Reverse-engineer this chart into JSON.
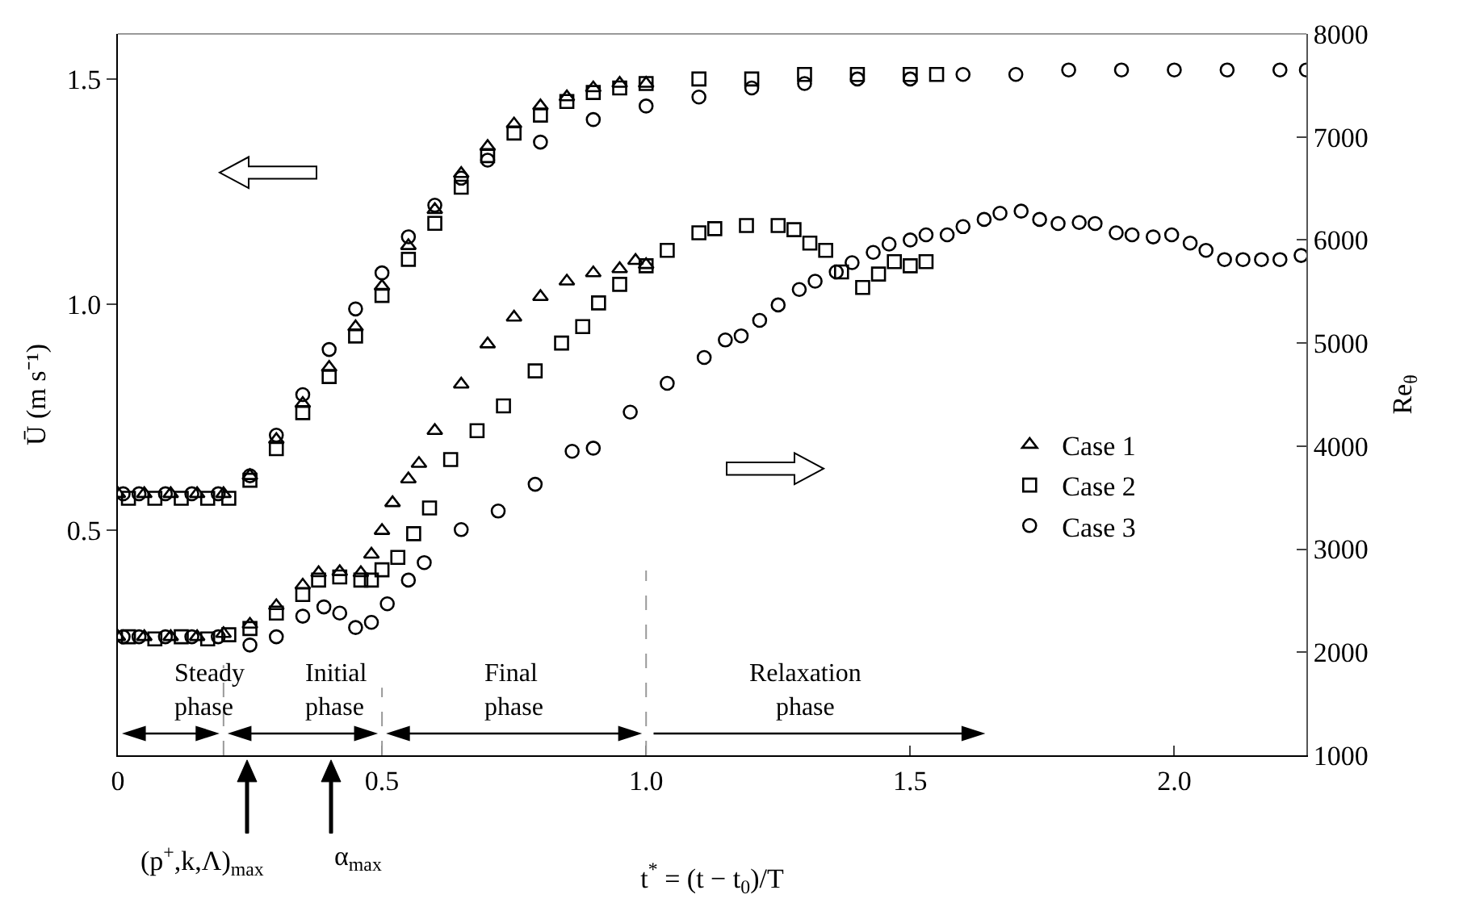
{
  "chart_data": {
    "type": "scatter",
    "xlabel": "t$^{*}$ = (t − t$_{0}$)/T",
    "ylabel": "Ū (m s⁻¹)",
    "y2label": "Re$_{θ}$",
    "xlim": [
      0,
      2.25
    ],
    "xticks": [
      0,
      0.5,
      {
        "value": 1.0,
        "label": "1.0"
      },
      1.5,
      {
        "value": 2.0,
        "label": "2.0"
      }
    ],
    "ylim": [
      0,
      1.6
    ],
    "yticks": [
      0.5,
      {
        "value": 1.0,
        "label": "1.0"
      },
      1.5
    ],
    "y2lim": [
      1000,
      8000
    ],
    "y2ticks": [
      1000,
      2000,
      3000,
      4000,
      5000,
      6000,
      7000,
      8000
    ],
    "legend": "right",
    "series": [
      {
        "name": "Case 1",
        "color": "#000000",
        "marker": "triangle",
        "x": [
          0,
          0.05,
          0.1,
          0.15,
          0.2,
          0.25,
          0.3,
          0.35,
          0.4,
          0.45,
          0.5,
          0.55,
          0.6,
          0.65,
          0.7,
          0.75,
          0.8,
          0.85,
          0.9,
          0.95,
          1.0
        ],
        "values": [
          0.58,
          0.58,
          0.58,
          0.58,
          0.58,
          0.62,
          0.7,
          0.78,
          0.86,
          0.95,
          1.04,
          1.13,
          1.21,
          1.29,
          1.35,
          1.4,
          1.44,
          1.46,
          1.48,
          1.49,
          1.49
        ]
      },
      {
        "name": "Case 2",
        "color": "#000000",
        "marker": "square",
        "x": [
          0.02,
          0.07,
          0.12,
          0.17,
          0.21,
          0.25,
          0.3,
          0.35,
          0.4,
          0.45,
          0.5,
          0.55,
          0.6,
          0.65,
          0.7,
          0.75,
          0.8,
          0.85,
          0.9,
          0.95,
          1.0,
          1.1,
          1.2,
          1.3,
          1.4,
          1.5,
          1.55
        ],
        "values": [
          0.57,
          0.57,
          0.57,
          0.57,
          0.57,
          0.61,
          0.68,
          0.76,
          0.84,
          0.93,
          1.02,
          1.1,
          1.18,
          1.26,
          1.33,
          1.38,
          1.42,
          1.45,
          1.47,
          1.48,
          1.49,
          1.5,
          1.5,
          1.51,
          1.51,
          1.51,
          1.51
        ]
      },
      {
        "name": "Case 3",
        "color": "#000000",
        "marker": "circle",
        "x": [
          0.01,
          0.04,
          0.09,
          0.14,
          0.19,
          0.25,
          0.3,
          0.35,
          0.4,
          0.45,
          0.5,
          0.55,
          0.6,
          0.65,
          0.7,
          0.8,
          0.9,
          1.0,
          1.1,
          1.2,
          1.3,
          1.4,
          1.5,
          1.6,
          1.7,
          1.8,
          1.9,
          2.0,
          2.1,
          2.2,
          2.25
        ],
        "values": [
          0.58,
          0.58,
          0.58,
          0.58,
          0.58,
          0.62,
          0.71,
          0.8,
          0.9,
          0.99,
          1.07,
          1.15,
          1.22,
          1.28,
          1.32,
          1.36,
          1.41,
          1.44,
          1.46,
          1.48,
          1.49,
          1.5,
          1.5,
          1.51,
          1.51,
          1.52,
          1.52,
          1.52,
          1.52,
          1.52,
          1.52
        ]
      },
      {
        "color": "#000000",
        "marker": "triangle",
        "axis": "y2",
        "x": [
          0,
          0.05,
          0.1,
          0.15,
          0.2,
          0.25,
          0.3,
          0.35,
          0.38,
          0.42,
          0.46,
          0.48,
          0.5,
          0.52,
          0.55,
          0.57,
          0.6,
          0.65,
          0.7,
          0.75,
          0.8,
          0.85,
          0.9,
          0.95,
          0.98,
          1.0
        ],
        "values": [
          2150,
          2150,
          2150,
          2150,
          2180,
          2270,
          2450,
          2650,
          2770,
          2780,
          2770,
          2950,
          3180,
          3450,
          3680,
          3830,
          4150,
          4600,
          4990,
          5250,
          5450,
          5600,
          5680,
          5720,
          5800,
          5760
        ]
      },
      {
        "color": "#000000",
        "marker": "square",
        "axis": "y2",
        "x": [
          0.02,
          0.07,
          0.12,
          0.17,
          0.21,
          0.25,
          0.3,
          0.35,
          0.38,
          0.42,
          0.46,
          0.48,
          0.5,
          0.53,
          0.56,
          0.59,
          0.63,
          0.68,
          0.73,
          0.79,
          0.84,
          0.88,
          0.91,
          0.95,
          1.0,
          1.04,
          1.1,
          1.13,
          1.19,
          1.25,
          1.28,
          1.31,
          1.34,
          1.37,
          1.41,
          1.44,
          1.47,
          1.5,
          1.53
        ],
        "values": [
          2150,
          2130,
          2150,
          2130,
          2170,
          2230,
          2380,
          2560,
          2700,
          2730,
          2700,
          2700,
          2800,
          2920,
          3150,
          3400,
          3870,
          4150,
          4390,
          4730,
          5000,
          5160,
          5390,
          5570,
          5750,
          5900,
          6070,
          6110,
          6140,
          6140,
          6100,
          5970,
          5900,
          5690,
          5540,
          5670,
          5790,
          5750,
          5790
        ]
      },
      {
        "color": "#000000",
        "marker": "circle",
        "axis": "y2",
        "x": [
          0.01,
          0.04,
          0.09,
          0.14,
          0.19,
          0.25,
          0.3,
          0.35,
          0.39,
          0.42,
          0.45,
          0.48,
          0.51,
          0.55,
          0.58,
          0.65,
          0.72,
          0.79,
          0.86,
          0.9,
          0.97,
          1.04,
          1.11,
          1.15,
          1.18,
          1.215,
          1.25,
          1.29,
          1.32,
          1.36,
          1.39,
          1.43,
          1.46,
          1.5,
          1.53,
          1.57,
          1.6,
          1.64,
          1.67,
          1.71,
          1.745,
          1.78,
          1.82,
          1.85,
          1.89,
          1.92,
          1.96,
          1.995,
          2.03,
          2.06,
          2.095,
          2.13,
          2.165,
          2.2,
          2.24
        ],
        "values": [
          2150,
          2150,
          2150,
          2150,
          2150,
          2070,
          2150,
          2350,
          2440,
          2380,
          2240,
          2290,
          2470,
          2700,
          2870,
          3190,
          3370,
          3630,
          3950,
          3980,
          4330,
          4610,
          4860,
          5030,
          5070,
          5220,
          5370,
          5520,
          5600,
          5690,
          5780,
          5880,
          5960,
          6000,
          6050,
          6050,
          6130,
          6200,
          6260,
          6280,
          6200,
          6160,
          6170,
          6160,
          6070,
          6050,
          6030,
          6050,
          5970,
          5900,
          5810,
          5810,
          5810,
          5810,
          5850
        ]
      }
    ],
    "ref_lines": [
      {
        "axis": "x",
        "value": 0.2,
        "color": "#999999",
        "line_style": "dashed"
      },
      {
        "axis": "x",
        "value": 0.5,
        "color": "#999999",
        "line_style": "dashed"
      },
      {
        "axis": "x",
        "value": 1.0,
        "color": "#999999",
        "line_style": "dashed"
      }
    ],
    "annotations": [
      "Steady\nphase",
      "Initial\nphase",
      "Final\nphase",
      "Relaxation\nphase",
      "(p$^{+}$,k,Λ)$_{max}$",
      "α$_{max}$"
    ]
  }
}
